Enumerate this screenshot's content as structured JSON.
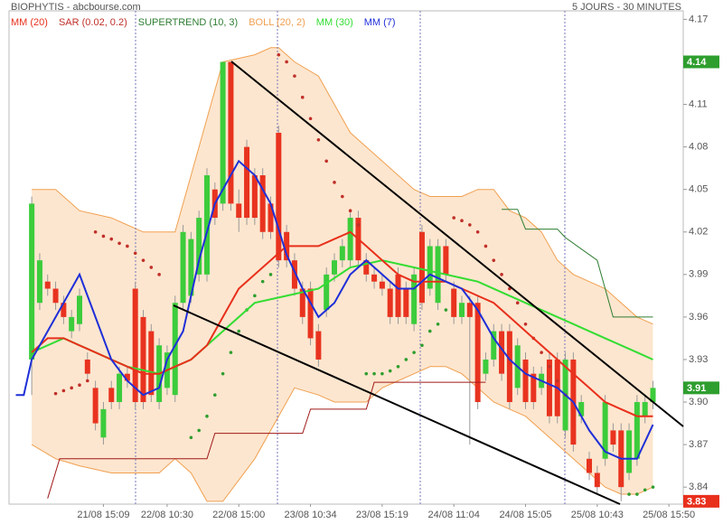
{
  "chart_data": {
    "type": "candlestick",
    "title": "BIOPHYTIS - abcbourse.com",
    "subtitle": "5 JOURS - 30 MINUTES",
    "x": [
      0,
      1,
      2,
      3,
      4,
      5,
      6,
      7,
      8,
      9,
      10,
      11,
      12,
      13,
      14,
      15,
      16,
      17,
      18,
      19,
      20,
      21,
      22,
      23,
      24,
      25,
      26,
      27,
      28,
      29,
      30,
      31,
      32,
      33,
      34,
      35,
      36,
      37,
      38,
      39,
      40,
      41,
      42,
      43,
      44,
      45,
      46,
      47,
      48,
      49,
      50,
      51,
      52,
      53,
      54,
      55,
      56,
      57,
      58,
      59,
      60,
      61,
      62,
      63,
      64,
      65,
      66,
      67,
      68,
      69,
      70,
      71,
      72,
      73,
      74,
      75,
      76,
      77,
      78
    ],
    "open": [
      3.93,
      3.97,
      3.985,
      3.98,
      3.97,
      3.95,
      3.955,
      3.93,
      3.91,
      3.875,
      3.91,
      3.9,
      3.92,
      3.98,
      3.96,
      3.95,
      3.9,
      3.91,
      3.905,
      3.97,
      3.975,
      3.99,
      3.99,
      4.05,
      4.04,
      4.14,
      4.04,
      4.08,
      4.06,
      4.06,
      4.04,
      4.09,
      4.02,
      4.0,
      3.98,
      3.98,
      3.95,
      3.965,
      3.99,
      4.0,
      4.0,
      4.03,
      4.0,
      3.99,
      3.985,
      3.98,
      3.99,
      3.98,
      3.955,
      4.02,
      3.98,
      3.97,
      4.01,
      3.98,
      3.96,
      3.97,
      3.97,
      3.92,
      3.93,
      3.95,
      3.95,
      3.91,
      3.93,
      3.92,
      3.91,
      3.93,
      3.93,
      3.88,
      3.93,
      3.89,
      3.86,
      3.85,
      3.86,
      3.88,
      3.88,
      3.85,
      3.86,
      3.89,
      3.9
    ],
    "high": [
      4.045,
      4.005,
      3.99,
      3.985,
      3.975,
      3.965,
      3.98,
      3.935,
      3.915,
      3.9,
      3.915,
      3.925,
      3.925,
      3.985,
      3.965,
      3.955,
      3.945,
      3.94,
      3.975,
      4.025,
      4.02,
      4.035,
      4.065,
      4.055,
      4.14,
      4.14,
      4.05,
      4.085,
      4.065,
      4.065,
      4.045,
      4.095,
      4.025,
      4.005,
      3.985,
      3.985,
      3.955,
      3.995,
      4.005,
      4.015,
      4.035,
      4.035,
      4.005,
      3.995,
      3.99,
      3.985,
      3.995,
      3.985,
      3.995,
      4.025,
      4.015,
      4.015,
      4.015,
      3.985,
      3.975,
      3.975,
      3.975,
      3.935,
      3.955,
      3.955,
      3.955,
      3.945,
      3.935,
      3.925,
      3.925,
      3.935,
      3.935,
      3.935,
      3.935,
      3.905,
      3.865,
      3.855,
      3.905,
      3.885,
      3.885,
      3.885,
      3.905,
      3.905,
      3.915
    ],
    "low": [
      3.905,
      3.965,
      3.975,
      3.965,
      3.955,
      3.945,
      3.95,
      3.915,
      3.88,
      3.87,
      3.895,
      3.895,
      3.91,
      3.895,
      3.895,
      3.9,
      3.895,
      3.905,
      3.9,
      3.965,
      3.97,
      3.985,
      3.985,
      4.025,
      4.035,
      4.035,
      4.02,
      4.025,
      4.025,
      4.015,
      4.015,
      3.995,
      3.995,
      3.975,
      3.955,
      3.94,
      3.925,
      3.96,
      3.985,
      3.995,
      3.995,
      3.995,
      3.985,
      3.98,
      3.975,
      3.955,
      3.955,
      3.955,
      3.95,
      3.965,
      3.975,
      3.965,
      3.985,
      3.955,
      3.955,
      3.87,
      3.895,
      3.915,
      3.925,
      3.915,
      3.895,
      3.905,
      3.895,
      3.895,
      3.905,
      3.885,
      3.885,
      3.875,
      3.865,
      3.885,
      3.845,
      3.835,
      3.855,
      3.865,
      3.83,
      3.845,
      3.855,
      3.885,
      3.895
    ],
    "close": [
      4.04,
      4.0,
      3.98,
      3.97,
      3.96,
      3.96,
      3.975,
      3.92,
      3.885,
      3.895,
      3.9,
      3.92,
      3.915,
      3.9,
      3.9,
      3.905,
      3.94,
      3.935,
      3.97,
      4.02,
      4.015,
      4.03,
      4.06,
      4.03,
      4.14,
      4.04,
      4.03,
      4.03,
      4.03,
      4.02,
      4.02,
      4.0,
      4.0,
      3.98,
      3.96,
      3.945,
      3.93,
      3.99,
      4.0,
      4.01,
      4.03,
      4.0,
      3.99,
      3.985,
      3.98,
      3.96,
      3.96,
      3.96,
      3.99,
      3.97,
      4.01,
      4.01,
      3.99,
      3.96,
      3.97,
      3.96,
      3.9,
      3.93,
      3.95,
      3.92,
      3.9,
      3.94,
      3.9,
      3.9,
      3.92,
      3.89,
      3.89,
      3.93,
      3.87,
      3.9,
      3.85,
      3.84,
      3.9,
      3.87,
      3.84,
      3.88,
      3.9,
      3.9,
      3.91
    ],
    "up_color": "#3ccc3c",
    "down_color": "#e8331f",
    "xlim": [
      -2.85,
      81.8
    ],
    "xticks": [
      {
        "value": 9,
        "label": "21/08 15:09"
      },
      {
        "value": 17,
        "label": "22/08 10:30"
      },
      {
        "value": 26,
        "label": "22/08 15:00"
      },
      {
        "value": 35,
        "label": "23/08 10:34"
      },
      {
        "value": 44,
        "label": "23/08 15:19"
      },
      {
        "value": 53,
        "label": "24/08 11:04"
      },
      {
        "value": 62,
        "label": "24/08 15:05"
      },
      {
        "value": 71,
        "label": "25/08 10:43"
      },
      {
        "value": 80,
        "label": "25/08 15:50"
      }
    ],
    "ylim": [
      3.828,
      4.176
    ],
    "yticks": [
      4.17,
      4.14,
      4.11,
      4.08,
      4.05,
      4.02,
      3.99,
      3.96,
      3.93,
      {
        "value": 3.9,
        "label": "3.90"
      },
      3.87,
      3.84
    ],
    "overlays": [
      {
        "name": "BOLL (20, 2)",
        "type": "band",
        "color": "#f0a050",
        "fill": "#fde6cf",
        "x": [
          0,
          3,
          6,
          10,
          14,
          16,
          18,
          20,
          22,
          24,
          28,
          30,
          31,
          33,
          36,
          38,
          40,
          42,
          44,
          46,
          48,
          50,
          52,
          54,
          56,
          58,
          60,
          62,
          64,
          66,
          68,
          70,
          72,
          74,
          76,
          78
        ],
        "upper": [
          4.05,
          4.05,
          4.035,
          4.03,
          4.02,
          4.02,
          4.02,
          4.06,
          4.1,
          4.14,
          4.145,
          4.15,
          4.15,
          4.14,
          4.13,
          4.11,
          4.09,
          4.08,
          4.07,
          4.06,
          4.05,
          4.045,
          4.045,
          4.045,
          4.05,
          4.05,
          4.035,
          4.03,
          4.02,
          4.0,
          3.99,
          3.985,
          3.98,
          3.97,
          3.96,
          3.955
        ],
        "lower": [
          3.87,
          3.86,
          3.855,
          3.85,
          3.85,
          3.85,
          3.86,
          3.85,
          3.83,
          3.83,
          3.86,
          3.88,
          3.89,
          3.91,
          3.905,
          3.9,
          3.9,
          3.9,
          3.91,
          3.915,
          3.92,
          3.925,
          3.925,
          3.92,
          3.91,
          3.9,
          3.895,
          3.89,
          3.88,
          3.87,
          3.86,
          3.85,
          3.84,
          3.835,
          3.835,
          3.84
        ]
      },
      {
        "type": "step",
        "color": "#a01818",
        "x": [
          2,
          3.5,
          22,
          23,
          34,
          35,
          42,
          43,
          57
        ],
        "values": [
          3.832,
          3.86,
          3.86,
          3.878,
          3.878,
          3.895,
          3.895,
          3.914,
          3.914
        ]
      },
      {
        "name": "SUPERTREND (10, 3)",
        "type": "step",
        "color": "#2e7d32",
        "x": [
          59,
          61,
          62,
          66,
          67,
          71,
          73,
          78
        ],
        "values": [
          4.036,
          4.036,
          4.022,
          4.022,
          4.016,
          4.0,
          3.96,
          3.96
        ]
      },
      {
        "name": "SAR (0.02, 0.2)",
        "type": "dots",
        "color": "#c0302a",
        "x": [
          3,
          4,
          5,
          6,
          7,
          8,
          9,
          10,
          11,
          12,
          13,
          14,
          15,
          16,
          31,
          32,
          33,
          34,
          35,
          36,
          37,
          38,
          39,
          40,
          41,
          53,
          54,
          55,
          56,
          57,
          58,
          59,
          60,
          61,
          62,
          63,
          64,
          65,
          66,
          67
        ],
        "values": [
          3.906,
          3.908,
          3.91,
          3.912,
          3.915,
          4.02,
          4.017,
          4.015,
          4.012,
          4.01,
          4.005,
          4.0,
          3.995,
          3.99,
          4.145,
          4.14,
          4.13,
          4.115,
          4.1,
          4.085,
          4.07,
          4.055,
          4.045,
          4.035,
          4.025,
          4.03,
          4.028,
          4.025,
          4.02,
          4.01,
          4.0,
          3.99,
          3.98,
          3.97,
          3.955,
          3.945,
          3.935,
          3.925,
          3.915,
          3.905
        ]
      },
      {
        "type": "dots",
        "color": "#2e9e2e",
        "x": [
          20,
          21,
          22,
          23,
          24,
          25,
          26,
          27,
          28,
          29,
          30,
          42,
          43,
          44,
          45,
          46,
          47,
          48,
          49,
          50,
          51,
          52,
          75,
          76,
          77,
          78
        ],
        "values": [
          3.875,
          3.88,
          3.89,
          3.905,
          3.92,
          3.935,
          3.95,
          3.965,
          3.975,
          3.985,
          3.99,
          3.92,
          3.92,
          3.92,
          3.922,
          3.925,
          3.93,
          3.935,
          3.94,
          3.95,
          3.955,
          3.965,
          3.835,
          3.835,
          3.838,
          3.84
        ]
      },
      {
        "name": "MM (30)",
        "type": "line",
        "color": "#33dd33",
        "x": [
          0,
          4,
          8,
          12,
          16,
          20,
          24,
          28,
          32,
          36,
          40,
          44,
          48,
          52,
          56,
          60,
          64,
          68,
          72,
          76,
          78
        ],
        "values": [
          3.935,
          3.945,
          3.935,
          3.925,
          3.92,
          3.93,
          3.95,
          3.97,
          3.975,
          3.98,
          3.995,
          4.0,
          3.995,
          3.99,
          3.985,
          3.975,
          3.965,
          3.955,
          3.945,
          3.935,
          3.93
        ]
      },
      {
        "name": "MM (20)",
        "type": "line",
        "color": "#e8301c",
        "x": [
          0,
          2,
          4,
          6,
          8,
          10,
          12,
          14,
          16,
          18,
          20,
          22,
          24,
          26,
          28,
          30,
          32,
          34,
          36,
          38,
          40,
          42,
          44,
          46,
          48,
          50,
          52,
          54,
          56,
          58,
          60,
          62,
          64,
          66,
          68,
          70,
          72,
          74,
          76,
          78
        ],
        "values": [
          3.935,
          3.945,
          3.945,
          3.94,
          3.935,
          3.93,
          3.925,
          3.92,
          3.92,
          3.925,
          3.93,
          3.94,
          3.96,
          3.98,
          3.99,
          4.0,
          4.01,
          4.01,
          4.01,
          4.015,
          4.02,
          4.01,
          4.0,
          3.99,
          3.985,
          3.985,
          3.985,
          3.98,
          3.975,
          3.97,
          3.96,
          3.95,
          3.94,
          3.93,
          3.92,
          3.91,
          3.9,
          3.895,
          3.89,
          3.89
        ]
      },
      {
        "name": "MM (7)",
        "type": "line",
        "color": "#1f2fd8",
        "x": [
          -2,
          -1,
          0,
          3,
          6,
          8,
          10,
          12,
          14,
          16,
          17,
          19,
          21,
          23,
          24,
          26,
          28,
          30,
          32,
          34,
          36,
          38,
          40,
          42,
          44,
          46,
          48,
          50,
          52,
          54,
          56,
          58,
          60,
          62,
          64,
          66,
          68,
          70,
          72,
          74,
          76,
          78
        ],
        "values": [
          3.905,
          3.905,
          3.93,
          3.96,
          3.99,
          3.96,
          3.93,
          3.915,
          3.905,
          3.91,
          3.93,
          3.95,
          4.0,
          4.04,
          4.05,
          4.07,
          4.06,
          4.04,
          4.004,
          3.98,
          3.96,
          3.97,
          3.99,
          4.0,
          3.99,
          3.98,
          3.98,
          3.99,
          3.985,
          3.98,
          3.965,
          3.945,
          3.93,
          3.92,
          3.915,
          3.91,
          3.9,
          3.88,
          3.865,
          3.86,
          3.86,
          3.884
        ]
      }
    ],
    "price_tags": [
      {
        "value": 4.14,
        "color": "#2e9e2e"
      },
      {
        "value": 3.91,
        "color": "#2e9e2e"
      },
      {
        "value": 3.83,
        "color": "#e8301c"
      }
    ]
  }
}
